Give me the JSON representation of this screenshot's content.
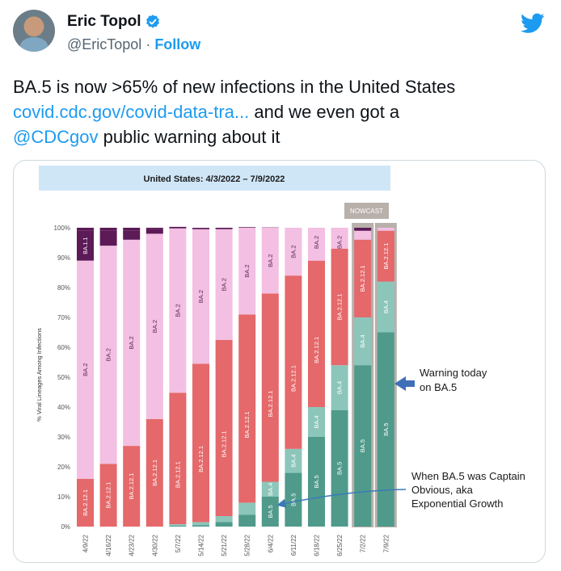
{
  "tweet": {
    "display_name": "Eric Topol",
    "handle": "@EricTopol",
    "separator": "·",
    "follow_label": "Follow",
    "text_line1": "BA.5 is now >65% of new infections in the United States",
    "link_text": "covid.cdc.gov/covid-data-tra...",
    "text_mid": " and we even got a",
    "mention_text": "@CDCgov",
    "text_end": " public warning about it"
  },
  "icons": {
    "verified": "verified-badge-icon",
    "brand": "twitter-bird-icon"
  },
  "colors": {
    "link": "#1d9bf0",
    "ba11": "#5c1a57",
    "ba2": "#f3bfe2",
    "ba2121": "#e5686a",
    "ba4": "#8cc6ba",
    "ba5": "#4f9a8b",
    "title_band": "#cfe6f7",
    "nowcast": "#b8b0ab"
  },
  "chart_data": {
    "type": "bar",
    "stacked": true,
    "title": "United States: 4/3/2022 – 7/9/2022",
    "nowcast_label": "NOWCAST",
    "ylabel": "% Viral Lineages Among Infections",
    "ylim": [
      0,
      100
    ],
    "y_ticks": [
      "0%",
      "10%",
      "20%",
      "30%",
      "40%",
      "50%",
      "60%",
      "70%",
      "80%",
      "90%",
      "100%"
    ],
    "categories": [
      "4/9/22",
      "4/16/22",
      "4/23/22",
      "4/30/22",
      "5/7/22",
      "5/14/22",
      "5/21/22",
      "5/28/22",
      "6/4/22",
      "6/11/22",
      "6/18/22",
      "6/25/22",
      "7/2/22",
      "7/9/22"
    ],
    "series": [
      {
        "name": "BA.5",
        "values": [
          0,
          0,
          0,
          0,
          0.3,
          0.5,
          1.5,
          4,
          10,
          18,
          30,
          39,
          54,
          65
        ]
      },
      {
        "name": "BA.4",
        "values": [
          0,
          0,
          0,
          0,
          0.5,
          1,
          2,
          4,
          5,
          8,
          10,
          15,
          16,
          17
        ]
      },
      {
        "name": "BA.2.12.1",
        "values": [
          16,
          21,
          27,
          36,
          44,
          53,
          59,
          63,
          63,
          58,
          49,
          39,
          26,
          17
        ]
      },
      {
        "name": "BA.2",
        "values": [
          73,
          73,
          69,
          62,
          55,
          45,
          37,
          29,
          22,
          16,
          11,
          7,
          3,
          1
        ]
      },
      {
        "name": "BA.1.1",
        "values": [
          10,
          5,
          3,
          1.5,
          0.5,
          0.3,
          0.2,
          0.2,
          0.1,
          0,
          0,
          0,
          0,
          0
        ]
      }
    ],
    "bar_labels": [
      [
        "",
        "",
        "BA.2.12.1",
        "BA.2",
        "BA.1.1"
      ],
      [
        "",
        "",
        "BA.2.12.1",
        "BA.2",
        ""
      ],
      [
        "",
        "",
        "BA.2.12.1",
        "BA.2",
        ""
      ],
      [
        "",
        "",
        "BA.2.12.1",
        "BA.2",
        ""
      ],
      [
        "",
        "",
        "BA.2.12.1",
        "BA.2",
        ""
      ],
      [
        "",
        "",
        "BA.2.12.1",
        "BA.2",
        ""
      ],
      [
        "",
        "",
        "BA.2.12.1",
        "BA.2",
        ""
      ],
      [
        "",
        "",
        "BA.2.12.1",
        "BA.2",
        ""
      ],
      [
        "BA.5",
        "BA.4",
        "BA.2.12.1",
        "BA.2",
        ""
      ],
      [
        "BA.5",
        "BA.4",
        "BA.2.12.1",
        "BA.2",
        ""
      ],
      [
        "BA.5",
        "BA.4",
        "BA.2.12.1",
        "BA.2",
        ""
      ],
      [
        "BA.5",
        "BA.4",
        "BA.2.12.1",
        "BA.2",
        ""
      ],
      [
        "BA.5",
        "BA.4",
        "BA.2.12.1",
        "",
        ""
      ],
      [
        "BA.5",
        "BA.4",
        "BA.2.12.1",
        "",
        ""
      ]
    ],
    "nowcast_bars": [
      12,
      13
    ],
    "annotations": [
      {
        "text_lines": [
          "Warning today",
          "on BA.5"
        ],
        "target_bar": 13
      },
      {
        "text_lines": [
          "When BA.5 was Captain",
          "Obvious, aka",
          "Exponential Growth"
        ],
        "target_bar": 8
      }
    ]
  }
}
